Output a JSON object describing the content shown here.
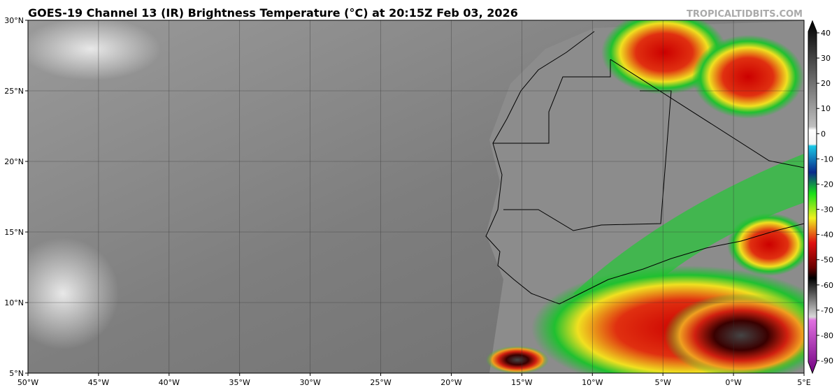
{
  "header": {
    "title": "GOES-19 Channel 13 (IR) Brightness Temperature (°C) at 20:15Z Feb 03, 2026",
    "watermark": "TROPICALTIDBITS.COM"
  },
  "map": {
    "lat_labels": [
      "30°N",
      "25°N",
      "20°N",
      "15°N",
      "10°N",
      "5°N"
    ],
    "lon_labels": [
      "50°W",
      "45°W",
      "40°W",
      "35°W",
      "30°W",
      "25°W",
      "20°W",
      "15°W",
      "10°W",
      "5°W",
      "0°W",
      "5°E"
    ]
  },
  "colorbar": {
    "ticks": [
      40,
      30,
      20,
      10,
      0,
      -10,
      -20,
      -30,
      -40,
      -50,
      -60,
      -70,
      -80,
      -90
    ]
  }
}
